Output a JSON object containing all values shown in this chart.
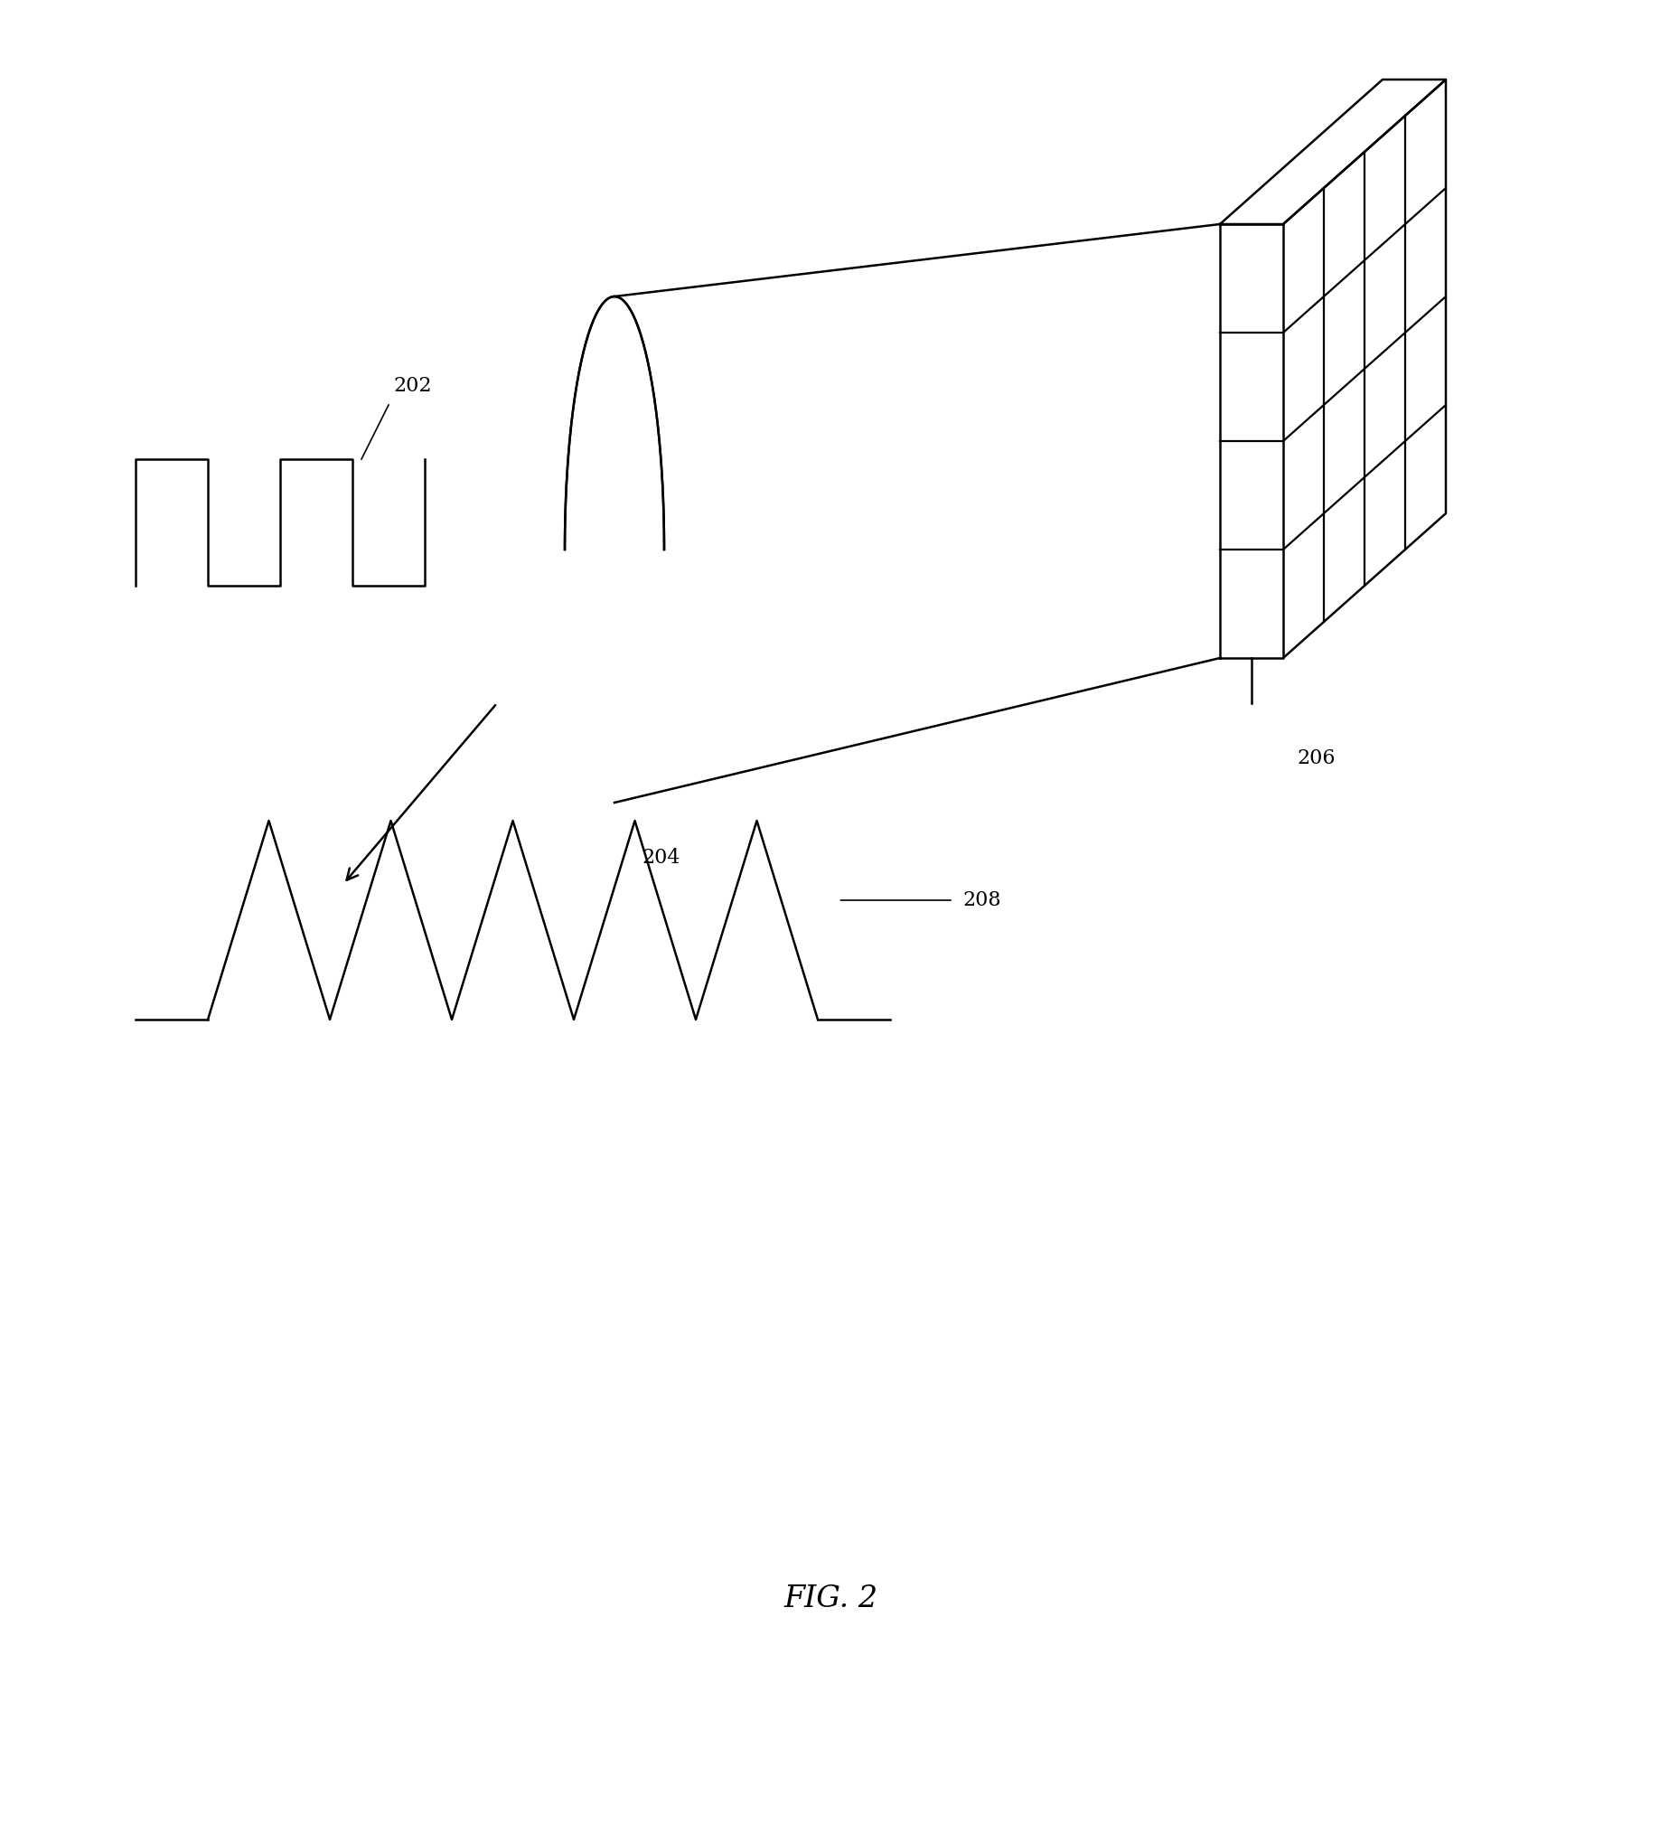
{
  "bg_color": "#ffffff",
  "line_color": "#000000",
  "fig_label": "FIG. 2",
  "label_202": "202",
  "label_204": "204",
  "label_206": "206",
  "label_208": "208",
  "line_width": 1.8,
  "font_size_labels": 16,
  "font_size_fig": 24
}
